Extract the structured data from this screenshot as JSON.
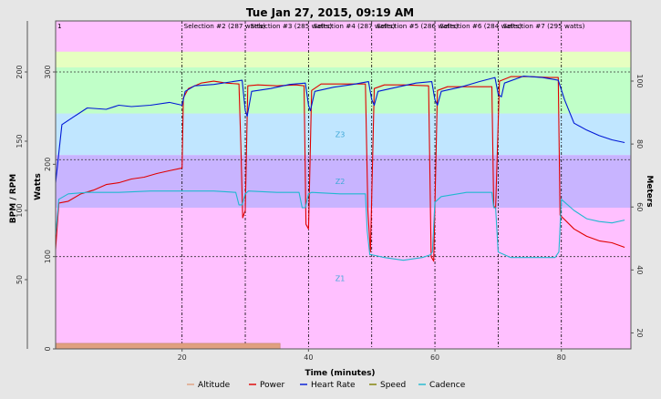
{
  "chart_data": {
    "type": "line",
    "title": "Tue Jan 27, 2015, 09:19 AM",
    "xlabel": "Time (minutes)",
    "xlim": [
      0,
      91
    ],
    "x_ticks": [
      20,
      40,
      60,
      80
    ],
    "axes": {
      "bpm_rpm": {
        "label": "BPM / RPM",
        "range": [
          0,
          200
        ],
        "ticks": [
          50,
          100,
          150,
          200
        ]
      },
      "watts": {
        "label": "Watts",
        "range": [
          0,
          300
        ],
        "ticks": [
          0,
          100,
          200,
          300
        ]
      },
      "meters": {
        "label": "Meters",
        "range": [
          10,
          100
        ],
        "ticks": [
          20,
          40,
          60,
          80,
          100
        ]
      }
    },
    "zones": [
      {
        "label": "Z1",
        "from": 0,
        "to": 153,
        "color": "#ffc0ff"
      },
      {
        "label": "Z2",
        "from": 153,
        "to": 210,
        "color": "#c8b4ff"
      },
      {
        "label": "Z3",
        "from": 210,
        "to": 255,
        "color": "#c0e6ff"
      },
      {
        "label": "",
        "from": 255,
        "to": 305,
        "color": "#c0ffc8"
      },
      {
        "label": "",
        "from": 305,
        "to": 322,
        "color": "#e6ffc0"
      }
    ],
    "reference_lines_watts": [
      100,
      205,
      300
    ],
    "selections": [
      {
        "label": "1",
        "x": 0
      },
      {
        "label": "Selection #2 (287 watts)",
        "x": 20
      },
      {
        "label": "Selection #3 (285 watts)",
        "x": 30.5
      },
      {
        "label": "Selection #4 (287 watts)",
        "x": 40.5
      },
      {
        "label": "Selection #5 (286 watts)",
        "x": 50.5
      },
      {
        "label": "Selection #6 (284 watts)",
        "x": 60.5
      },
      {
        "label": "Selection #7 (295 watts)",
        "x": 70.5
      }
    ],
    "markers": [
      20,
      30,
      40,
      50,
      60,
      70,
      80
    ],
    "series": [
      {
        "name": "Altitude",
        "color": "#e0a080",
        "axis": "watts",
        "style": "area",
        "points": [
          [
            0,
            6
          ],
          [
            35.5,
            6
          ]
        ]
      },
      {
        "name": "Power",
        "color": "#e00000",
        "axis": "watts",
        "points": [
          [
            0,
            108
          ],
          [
            0.5,
            158
          ],
          [
            2,
            160
          ],
          [
            4,
            168
          ],
          [
            6,
            172
          ],
          [
            8,
            178
          ],
          [
            10,
            180
          ],
          [
            12,
            184
          ],
          [
            14,
            186
          ],
          [
            16,
            190
          ],
          [
            18,
            193
          ],
          [
            20,
            196
          ],
          [
            20.2,
            272
          ],
          [
            21,
            282
          ],
          [
            23,
            288
          ],
          [
            25,
            290
          ],
          [
            27,
            288
          ],
          [
            29,
            287
          ],
          [
            29.3,
            220
          ],
          [
            29.6,
            142
          ],
          [
            30,
            150
          ],
          [
            30.4,
            285
          ],
          [
            32,
            286
          ],
          [
            35,
            285
          ],
          [
            38,
            286
          ],
          [
            39.3,
            285
          ],
          [
            39.6,
            135
          ],
          [
            40,
            130
          ],
          [
            40.5,
            280
          ],
          [
            42,
            287
          ],
          [
            45,
            287
          ],
          [
            49,
            287
          ],
          [
            49.4,
            150
          ],
          [
            49.8,
            105
          ],
          [
            50.4,
            282
          ],
          [
            52,
            286
          ],
          [
            55,
            286
          ],
          [
            59,
            285
          ],
          [
            59.4,
            100
          ],
          [
            59.8,
            95
          ],
          [
            60.4,
            280
          ],
          [
            62,
            284
          ],
          [
            65,
            284
          ],
          [
            69,
            284
          ],
          [
            69.3,
            155
          ],
          [
            69.6,
            152
          ],
          [
            70.2,
            290
          ],
          [
            72,
            295
          ],
          [
            75,
            295
          ],
          [
            78,
            294
          ],
          [
            79.5,
            294
          ],
          [
            79.8,
            145
          ],
          [
            82,
            130
          ],
          [
            84,
            122
          ],
          [
            86,
            117
          ],
          [
            88,
            115
          ],
          [
            90,
            110
          ]
        ]
      },
      {
        "name": "Heart Rate",
        "color": "#0018d6",
        "axis": "bpm",
        "points": [
          [
            0,
            120
          ],
          [
            1,
            162
          ],
          [
            3,
            168
          ],
          [
            5,
            174
          ],
          [
            8,
            173
          ],
          [
            10,
            176
          ],
          [
            12,
            175
          ],
          [
            15,
            176
          ],
          [
            18,
            178
          ],
          [
            20,
            176
          ],
          [
            20.5,
            186
          ],
          [
            22,
            190
          ],
          [
            25,
            191
          ],
          [
            28,
            193
          ],
          [
            29.5,
            194
          ],
          [
            30,
            172
          ],
          [
            30.3,
            168
          ],
          [
            31,
            186
          ],
          [
            34,
            188
          ],
          [
            37,
            191
          ],
          [
            39.5,
            192
          ],
          [
            40,
            176
          ],
          [
            40.3,
            172
          ],
          [
            41,
            186
          ],
          [
            44,
            189
          ],
          [
            47,
            191
          ],
          [
            49.5,
            193
          ],
          [
            50,
            180
          ],
          [
            50.4,
            176
          ],
          [
            51,
            186
          ],
          [
            54,
            189
          ],
          [
            57,
            192
          ],
          [
            59.5,
            193
          ],
          [
            60,
            180
          ],
          [
            60.4,
            176
          ],
          [
            61,
            186
          ],
          [
            64,
            189
          ],
          [
            67,
            193
          ],
          [
            69.5,
            196
          ],
          [
            70,
            184
          ],
          [
            70.5,
            182
          ],
          [
            71,
            192
          ],
          [
            74,
            197
          ],
          [
            77,
            196
          ],
          [
            79.5,
            194
          ],
          [
            80.5,
            180
          ],
          [
            82,
            163
          ],
          [
            84,
            158
          ],
          [
            86,
            154
          ],
          [
            88,
            151
          ],
          [
            90,
            149
          ]
        ]
      },
      {
        "name": "Speed",
        "color": "#808000",
        "axis": "bpm",
        "points": []
      },
      {
        "name": "Cadence",
        "color": "#20b8d0",
        "axis": "bpm",
        "points": [
          [
            0,
            82
          ],
          [
            0.5,
            108
          ],
          [
            2,
            112
          ],
          [
            5,
            113
          ],
          [
            10,
            113
          ],
          [
            15,
            114
          ],
          [
            20,
            114
          ],
          [
            25,
            114
          ],
          [
            28.5,
            113
          ],
          [
            29,
            104
          ],
          [
            29.5,
            104
          ],
          [
            30,
            112
          ],
          [
            30.5,
            114
          ],
          [
            35,
            113
          ],
          [
            38.5,
            113
          ],
          [
            39,
            102
          ],
          [
            39.5,
            102
          ],
          [
            40,
            112
          ],
          [
            40.5,
            113
          ],
          [
            45,
            112
          ],
          [
            49,
            112
          ],
          [
            49.3,
            85
          ],
          [
            49.7,
            68
          ],
          [
            50,
            68
          ],
          [
            52,
            66
          ],
          [
            55,
            64
          ],
          [
            58,
            66
          ],
          [
            59.3,
            68
          ],
          [
            59.6,
            70
          ],
          [
            60,
            106
          ],
          [
            61,
            110
          ],
          [
            65,
            113
          ],
          [
            69,
            113
          ],
          [
            69.3,
            102
          ],
          [
            69.6,
            102
          ],
          [
            70,
            70
          ],
          [
            72,
            66
          ],
          [
            75,
            66
          ],
          [
            79,
            66
          ],
          [
            79.6,
            70
          ],
          [
            80,
            108
          ],
          [
            82,
            100
          ],
          [
            84,
            94
          ],
          [
            86,
            92
          ],
          [
            88,
            91
          ],
          [
            90,
            93
          ]
        ]
      }
    ],
    "legend": {
      "position": "bottom",
      "items": [
        "Altitude",
        "Power",
        "Heart Rate",
        "Speed",
        "Cadence"
      ]
    }
  }
}
